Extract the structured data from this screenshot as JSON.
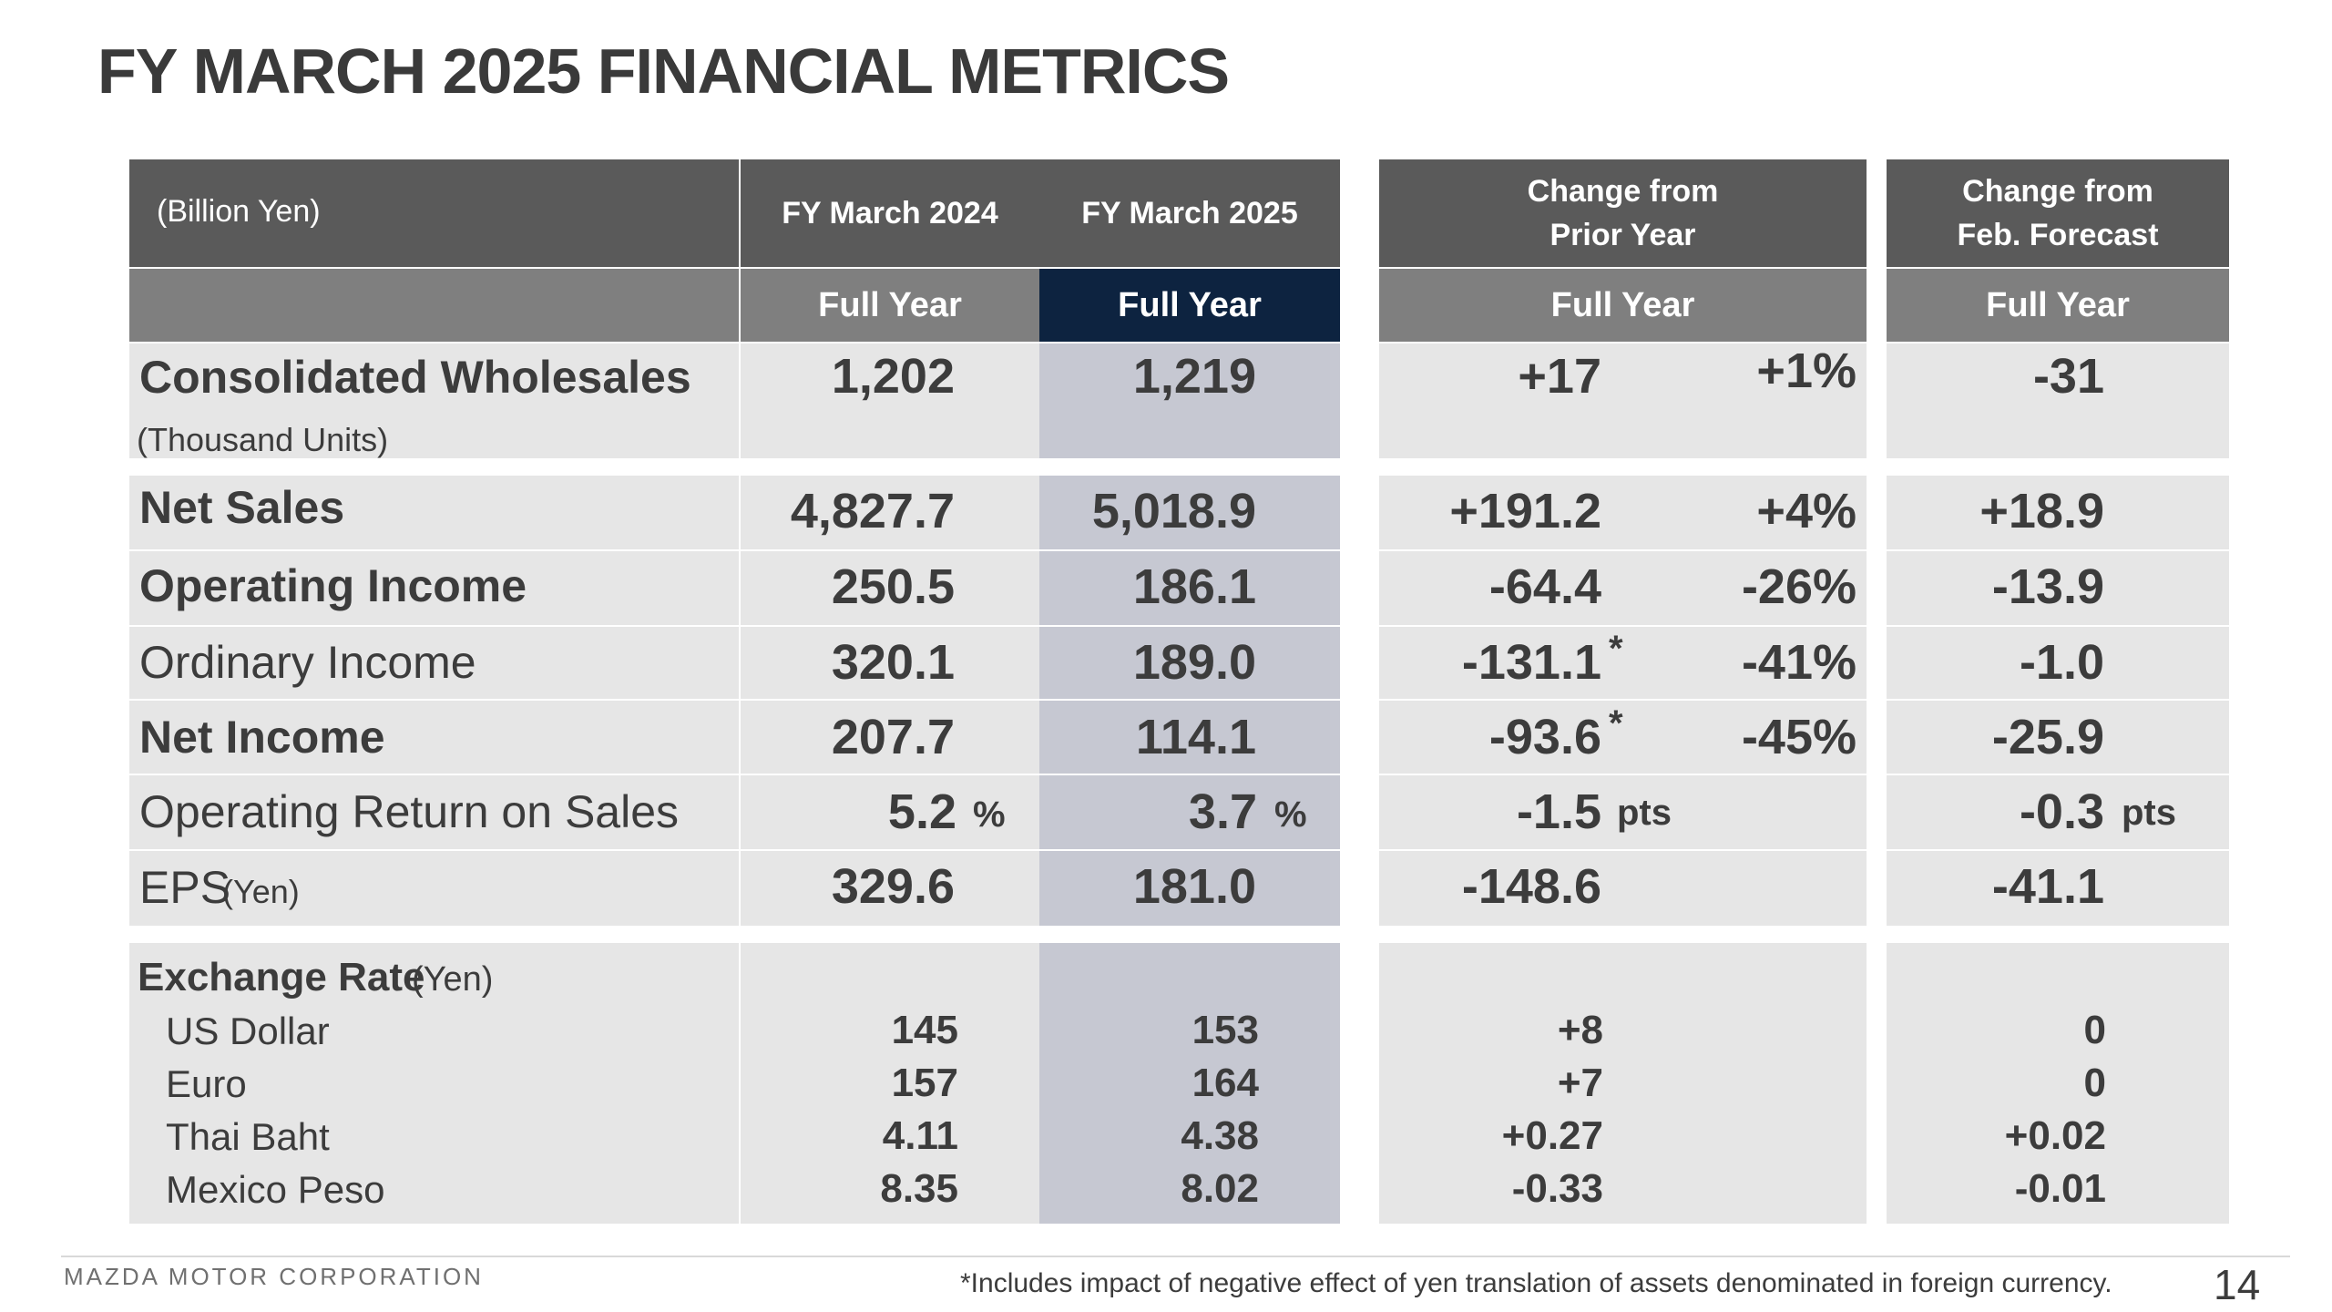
{
  "title": "FY MARCH 2025 FINANCIAL METRICS",
  "header": {
    "unit_label": "(Billion Yen)",
    "fy2024": "FY March 2024",
    "fy2025": "FY March 2025",
    "change_prior_line1": "Change from",
    "change_prior_line2": "Prior Year",
    "change_forecast_line1": "Change from",
    "change_forecast_line2": "Feb. Forecast",
    "full_year": "Full Year"
  },
  "wholesales": {
    "label": "Consolidated Wholesales",
    "sub": "(Thousand Units)",
    "fy2024": "1,202",
    "fy2025": "1,219",
    "chg": "+17",
    "chg_pct": "+1%",
    "fcst": "-31"
  },
  "rows": [
    {
      "label": "Net Sales",
      "fy2024": "4,827.7",
      "fy2025": "5,018.9",
      "chg": "+191.2",
      "chg_pct": "+4%",
      "fcst": "+18.9"
    },
    {
      "label": "Operating Income",
      "fy2024": "250.5",
      "fy2025": "186.1",
      "chg": "-64.4",
      "chg_pct": "-26%",
      "fcst": "-13.9"
    },
    {
      "label": "Ordinary Income",
      "fy2024": "320.1",
      "fy2025": "189.0",
      "chg": "-131.1",
      "star": "*",
      "chg_pct": "-41%",
      "fcst": "-1.0"
    },
    {
      "label": "Net Income",
      "fy2024": "207.7",
      "fy2025": "114.1",
      "chg": "-93.6",
      "star": "*",
      "chg_pct": "-45%",
      "fcst": "-25.9"
    },
    {
      "label": "Operating Return on Sales",
      "fy2024": "5.2",
      "fy2025": "3.7",
      "pct_unit": "%",
      "chg": "-1.5",
      "pts_unit": "pts",
      "fcst": "-0.3"
    },
    {
      "label": "EPS",
      "label_unit": "(Yen)",
      "fy2024": "329.6",
      "fy2025": "181.0",
      "chg": "-148.6",
      "fcst": "-41.1"
    }
  ],
  "exchange": {
    "label": "Exchange Rate",
    "label_unit": "(Yen)",
    "items": [
      {
        "name": "US Dollar",
        "fy2024": "145",
        "fy2025": "153",
        "chg": "+8",
        "fcst": "0"
      },
      {
        "name": "Euro",
        "fy2024": "157",
        "fy2025": "164",
        "chg": "+7",
        "fcst": "0"
      },
      {
        "name": "Thai Baht",
        "fy2024": "4.11",
        "fy2025": "4.38",
        "chg": "+0.27",
        "fcst": "+0.02"
      },
      {
        "name": "Mexico Peso",
        "fy2024": "8.35",
        "fy2025": "8.02",
        "chg": "-0.33",
        "fcst": "-0.01"
      }
    ]
  },
  "footer": {
    "company": "MAZDA MOTOR CORPORATION",
    "note": "*Includes impact of negative effect of yen translation of assets denominated in foreign currency.",
    "page": "14"
  }
}
